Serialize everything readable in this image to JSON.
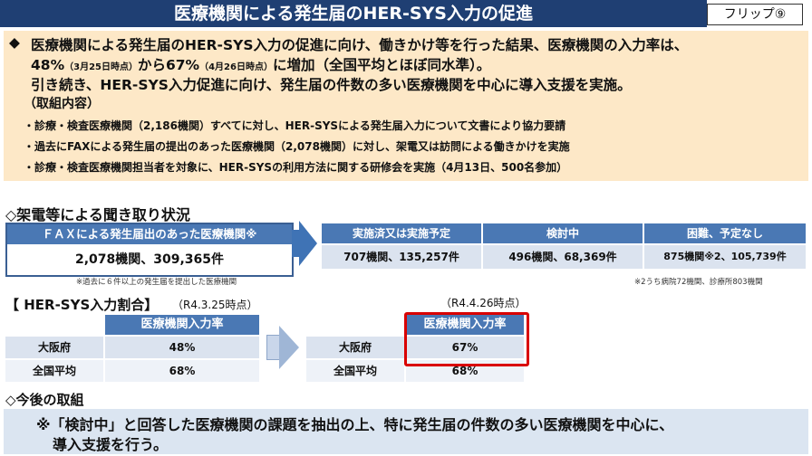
{
  "header": {
    "title": "医療機関による発生届のHER-SYS入力の促進",
    "flip_label": "フリップ⑨"
  },
  "summary": {
    "line1_bullet": "◆",
    "line1": "医療機関による発生届のHER-SYS入力の促進に向け、働きかけ等を行った結果、医療機関の入力率は、",
    "line2_a": "48%",
    "line2_a_note": "（3月25日時点）",
    "line2_b": "から67%",
    "line2_b_note": "（4月26日時点）",
    "line2_c": "に増加（全国平均とほぼ同水準）。",
    "line3": "引き続き、HER-SYS入力促進に向け、発生届の件数の多い医療機関を中心に導入支援を実施。",
    "line4": "（取組内容）",
    "bullets": [
      "・診療・検査医療機関（2,186機関）すべてに対し、HER-SYSによる発生届入力について文書により協力要請",
      "・過去にFAXによる発生届の提出のあった医療機関（2,078機関）に対し、架電又は訪問による働きかけを実施",
      "・診療・検査医療機関担当者を対象に、HER-SYSの利用方法に関する研修会を実施（4月13日、500名参加）"
    ]
  },
  "survey": {
    "heading": "◇架電等による聞き取り状況",
    "fax_header": "ＦＡＸによる発生届出のあった医療機関※",
    "fax_value": "2,078機関、309,365件",
    "fax_note": "※過去に６件以上の発生届を提出した医療機関",
    "columns": [
      {
        "header": "実施済又は実施予定",
        "value": "707機関、135,257件"
      },
      {
        "header": "検討中",
        "value": "496機関、68,369件"
      },
      {
        "header": "困難、予定なし",
        "value": "875機関※2、105,739件"
      }
    ],
    "right_note": "※2うち病院72機関、診療所803機関"
  },
  "rate": {
    "heading": "【 HER-SYS入力割合】",
    "date_left": "（R4.3.25時点）",
    "date_right": "（R4.4.26時点）",
    "col_header": "医療機関入力率",
    "rows_left": [
      {
        "label": "大阪府",
        "value": "48%"
      },
      {
        "label": "全国平均",
        "value": "68%"
      }
    ],
    "rows_right": [
      {
        "label": "大阪府",
        "value": "67%"
      },
      {
        "label": "全国平均",
        "value": "68%"
      }
    ]
  },
  "future": {
    "heading": "◇今後の取組",
    "line1": "※「検討中」と回答した医療機関の課題を抽出の上、特に発生届の件数の多い医療機関を中心に、",
    "line2": "導入支援を行う。"
  },
  "colors": {
    "title_bg": "#1f3f73",
    "summary_bg": "#fde8c7",
    "table_header": "#4a78b4",
    "row_bg": "#dbe3ef",
    "highlight": "#d90000"
  }
}
